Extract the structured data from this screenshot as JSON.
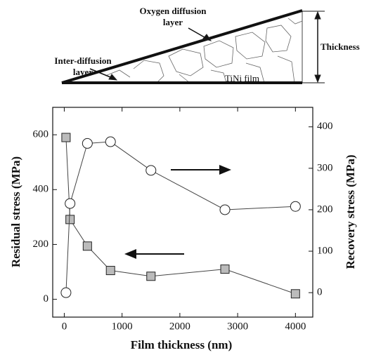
{
  "diagram": {
    "oxygen_label": [
      "Oxygen diffusion",
      "layer"
    ],
    "inter_label": [
      "Inter-diffusion",
      "layer"
    ],
    "film_label": "TiNi film",
    "thickness_label": "Thickness"
  },
  "chart_data": {
    "type": "line",
    "x_label": "Film thickness (nm)",
    "y_label": "Residual stress (MPa)",
    "y2_label": "Recovery stress (MPa)",
    "xlim": [
      -200,
      4300
    ],
    "xticks": [
      0,
      1000,
      2000,
      3000,
      4000
    ],
    "ylim": [
      -65,
      700
    ],
    "yticks": [
      0,
      200,
      400,
      600
    ],
    "y2lim": [
      -59,
      447
    ],
    "y2ticks": [
      0,
      100,
      200,
      300,
      400
    ],
    "series": [
      {
        "marker": "square",
        "color": "#bbbbbb",
        "x": [
          30,
          100,
          400,
          800,
          1500,
          2780,
          4000
        ],
        "values": [
          590,
          291,
          194,
          105,
          84,
          110,
          20
        ]
      },
      {
        "marker": "circle",
        "color": "#ffffff",
        "axis": "y2",
        "x": [
          30,
          100,
          400,
          800,
          1500,
          2780,
          4000
        ],
        "values": [
          0,
          215,
          360,
          364,
          295,
          200,
          208
        ]
      }
    ]
  }
}
